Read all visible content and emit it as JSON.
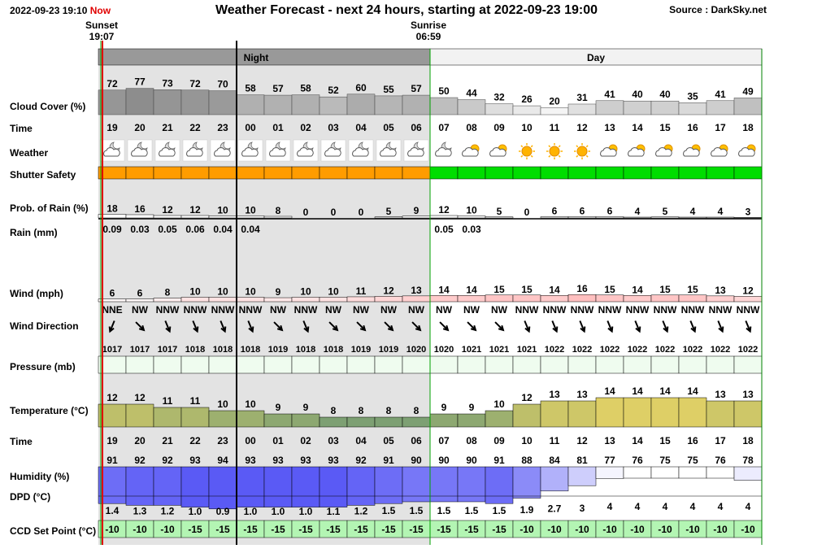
{
  "header": {
    "now_stamp": "2022-09-23 19:10",
    "now_label": "Now",
    "title": "Weather Forecast - next 24 hours, starting at 2022-09-23 19:00",
    "source": "Source : DarkSky.net"
  },
  "sun": {
    "sunset_label": "Sunset",
    "sunset_time": "19:07",
    "sunrise_label": "Sunrise",
    "sunrise_time": "06:59"
  },
  "periods": {
    "night": "Night",
    "day": "Day"
  },
  "row_labels": {
    "cloud": "Cloud Cover (%)",
    "time": "Time",
    "weather": "Weather",
    "shutter": "Shutter Safety",
    "rain_prob": "Prob. of Rain (%)",
    "rain_mm": "Rain (mm)",
    "wind": "Wind (mph)",
    "wind_dir": "Wind Direction",
    "pressure": "Pressure (mb)",
    "temp": "Temperature (°C)",
    "time2": "Time",
    "humidity": "Humidity (%)",
    "dpd": "DPD (°C)",
    "ccd": "CCD Set Point (°C)"
  },
  "colors": {
    "night_bg": "#e3e3e3",
    "night_header": "#999999",
    "unsafe": "#ff9c00",
    "safe": "#00dd00",
    "now_line": "#e00000",
    "ccd_bg": "#b3f5b3"
  },
  "chart_data": {
    "type": "table",
    "hours": [
      "19",
      "20",
      "21",
      "22",
      "23",
      "00",
      "01",
      "02",
      "03",
      "04",
      "05",
      "06",
      "07",
      "08",
      "09",
      "10",
      "11",
      "12",
      "13",
      "14",
      "15",
      "16",
      "17",
      "18"
    ],
    "night_hours": 12,
    "cloud_cover": [
      72,
      77,
      73,
      72,
      70,
      58,
      57,
      58,
      52,
      60,
      55,
      57,
      50,
      44,
      32,
      26,
      20,
      31,
      41,
      40,
      40,
      35,
      41,
      49
    ],
    "weather_icons": [
      "partly-cloudy-night",
      "partly-cloudy-night",
      "partly-cloudy-night",
      "partly-cloudy-night",
      "partly-cloudy-night",
      "partly-cloudy-night",
      "partly-cloudy-night",
      "partly-cloudy-night",
      "partly-cloudy-night",
      "partly-cloudy-night",
      "partly-cloudy-night",
      "partly-cloudy-night",
      "partly-cloudy-night",
      "partly-cloudy-day",
      "partly-cloudy-day",
      "clear-day",
      "clear-day",
      "clear-day",
      "partly-cloudy-day",
      "partly-cloudy-day",
      "partly-cloudy-day",
      "partly-cloudy-day",
      "partly-cloudy-day",
      "partly-cloudy-day"
    ],
    "shutter_safe": [
      false,
      false,
      false,
      false,
      false,
      false,
      false,
      false,
      false,
      false,
      false,
      false,
      true,
      true,
      true,
      true,
      true,
      true,
      true,
      true,
      true,
      true,
      true,
      true
    ],
    "rain_prob": [
      18,
      16,
      12,
      12,
      10,
      10,
      8,
      0,
      0,
      0,
      5,
      9,
      12,
      10,
      5,
      0,
      6,
      6,
      6,
      4,
      5,
      4,
      4,
      3
    ],
    "rain_mm": [
      "0.09",
      "0.03",
      "0.05",
      "0.06",
      "0.04",
      "0.04",
      "",
      "",
      "",
      "",
      "",
      "",
      "0.05",
      "0.03",
      "",
      "",
      "",
      "",
      "",
      "",
      "",
      "",
      "",
      ""
    ],
    "wind_mph": [
      6,
      6,
      8,
      10,
      10,
      10,
      9,
      10,
      10,
      11,
      12,
      13,
      14,
      14,
      15,
      15,
      14,
      16,
      15,
      14,
      15,
      15,
      13,
      12
    ],
    "wind_dir": [
      "NNE",
      "NW",
      "NNW",
      "NNW",
      "NNW",
      "NNW",
      "NW",
      "NNW",
      "NW",
      "NW",
      "NW",
      "NW",
      "NW",
      "NW",
      "NW",
      "NNW",
      "NNW",
      "NNW",
      "NNW",
      "NNW",
      "NNW",
      "NNW",
      "NNW",
      "NNW"
    ],
    "pressure": [
      1017,
      1017,
      1017,
      1018,
      1018,
      1018,
      1019,
      1018,
      1018,
      1019,
      1019,
      1020,
      1020,
      1021,
      1021,
      1021,
      1022,
      1022,
      1022,
      1022,
      1022,
      1022,
      1022,
      1022
    ],
    "temperature": [
      12,
      12,
      11,
      11,
      10,
      10,
      9,
      9,
      8,
      8,
      8,
      8,
      9,
      9,
      10,
      12,
      13,
      13,
      14,
      14,
      14,
      14,
      13,
      13
    ],
    "humidity": [
      91,
      92,
      92,
      93,
      94,
      93,
      93,
      93,
      93,
      92,
      91,
      90,
      90,
      90,
      91,
      88,
      84,
      81,
      77,
      76,
      75,
      75,
      76,
      78
    ],
    "dpd": [
      "1.4",
      "1.3",
      "1.2",
      "1.0",
      "0.9",
      "1.0",
      "1.0",
      "1.0",
      "1.1",
      "1.2",
      "1.5",
      "1.5",
      "1.5",
      "1.5",
      "1.5",
      "1.9",
      "2.7",
      "3",
      "4",
      "4",
      "4",
      "4",
      "4",
      "4"
    ],
    "ccd_setpoint": [
      -10,
      -10,
      -10,
      -15,
      -15,
      -15,
      -15,
      -15,
      -15,
      -15,
      -15,
      -15,
      -15,
      -15,
      -15,
      -10,
      -10,
      -10,
      -10,
      -10,
      -10,
      -10,
      -10,
      -10
    ]
  }
}
